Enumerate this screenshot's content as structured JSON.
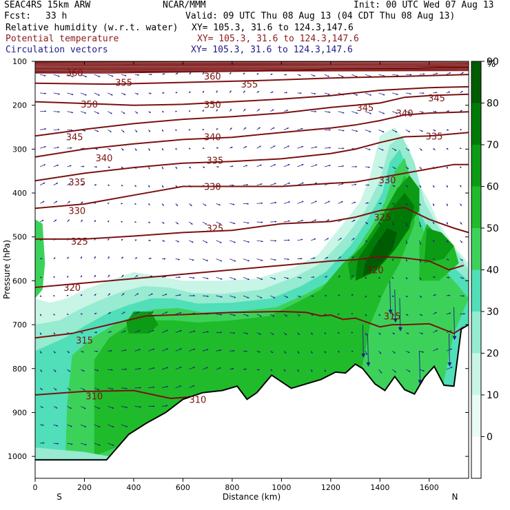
{
  "header": {
    "model": "SEAC4RS 15km ARW",
    "center": "NCAR/MMM",
    "init": "Init: 00 UTC Wed 07 Aug 13",
    "fcst_label": "Fcst:",
    "fcst_value": "33 h",
    "valid": "Valid: 09 UTC Thu 08 Aug 13 (04 CDT Thu 08 Aug 13)",
    "fields": [
      {
        "name": "Relative humidity (w.r.t. water)",
        "coords": "XY= 105.3, 31.6 to 124.3,147.6",
        "color": "#000000"
      },
      {
        "name": "Potential temperature",
        "coords": "XY= 105.3, 31.6 to 124.3,147.6",
        "color": "#8b1a1a"
      },
      {
        "name": "Circulation vectors",
        "coords": "XY= 105.3, 31.6 to 124.3,147.6",
        "color": "#1a1a8b"
      }
    ]
  },
  "chart_data": {
    "type": "heatmap",
    "xlabel": "Distance (km)",
    "ylabel": "Pressure (hPa)",
    "xlim": [
      0,
      1760
    ],
    "ylim": [
      1050,
      100
    ],
    "x_ticks": [
      0,
      200,
      400,
      600,
      800,
      1000,
      1200,
      1400,
      1600
    ],
    "y_ticks": [
      100,
      200,
      300,
      400,
      500,
      600,
      700,
      800,
      900,
      1000
    ],
    "x_end_labels": [
      "S",
      "N"
    ],
    "colorbar": {
      "unit": "%",
      "levels": [
        0,
        10,
        20,
        30,
        40,
        50,
        60,
        70,
        80,
        90
      ],
      "colors": [
        "#ffffff",
        "#e8fbf5",
        "#c8f5e6",
        "#96ebd0",
        "#50dfb8",
        "#3cd25a",
        "#20bb2a",
        "#0c9b14",
        "#007a06",
        "#005c00"
      ]
    },
    "terrain": [
      [
        0,
        1008
      ],
      [
        290,
        1008
      ],
      [
        380,
        950
      ],
      [
        450,
        925
      ],
      [
        530,
        900
      ],
      [
        600,
        870
      ],
      [
        680,
        855
      ],
      [
        760,
        850
      ],
      [
        820,
        840
      ],
      [
        860,
        870
      ],
      [
        900,
        855
      ],
      [
        960,
        815
      ],
      [
        1040,
        845
      ],
      [
        1100,
        835
      ],
      [
        1160,
        825
      ],
      [
        1220,
        808
      ],
      [
        1260,
        810
      ],
      [
        1300,
        790
      ],
      [
        1330,
        800
      ],
      [
        1380,
        835
      ],
      [
        1420,
        850
      ],
      [
        1460,
        818
      ],
      [
        1500,
        848
      ],
      [
        1540,
        858
      ],
      [
        1580,
        820
      ],
      [
        1620,
        795
      ],
      [
        1660,
        838
      ],
      [
        1700,
        840
      ],
      [
        1730,
        710
      ],
      [
        1760,
        700
      ]
    ],
    "theta_isolines": [
      {
        "value": 310,
        "points": [
          [
            0,
            860
          ],
          [
            200,
            852
          ],
          [
            400,
            850
          ],
          [
            550,
            868
          ],
          [
            620,
            865
          ],
          [
            700,
            855
          ],
          [
            760,
            850
          ]
        ]
      },
      {
        "value": 315,
        "points": [
          [
            0,
            730
          ],
          [
            150,
            720
          ],
          [
            300,
            700
          ],
          [
            450,
            680
          ],
          [
            600,
            677
          ],
          [
            800,
            672
          ],
          [
            1000,
            670
          ],
          [
            1100,
            672
          ],
          [
            1160,
            680
          ],
          [
            1200,
            678
          ],
          [
            1250,
            688
          ],
          [
            1300,
            685
          ],
          [
            1350,
            695
          ],
          [
            1400,
            705
          ],
          [
            1450,
            700
          ],
          [
            1500,
            700
          ],
          [
            1600,
            698
          ],
          [
            1700,
            720
          ],
          [
            1740,
            705
          ]
        ]
      },
      {
        "value": 320,
        "points": [
          [
            0,
            615
          ],
          [
            200,
            605
          ],
          [
            400,
            595
          ],
          [
            600,
            585
          ],
          [
            800,
            575
          ],
          [
            1000,
            565
          ],
          [
            1200,
            555
          ],
          [
            1300,
            552
          ],
          [
            1400,
            545
          ],
          [
            1500,
            548
          ],
          [
            1600,
            555
          ],
          [
            1680,
            575
          ],
          [
            1740,
            565
          ]
        ]
      },
      {
        "value": 325,
        "points": [
          [
            0,
            505
          ],
          [
            200,
            505
          ],
          [
            400,
            498
          ],
          [
            600,
            490
          ],
          [
            800,
            485
          ],
          [
            1000,
            470
          ],
          [
            1200,
            465
          ],
          [
            1300,
            455
          ],
          [
            1400,
            440
          ],
          [
            1500,
            433
          ],
          [
            1600,
            460
          ],
          [
            1700,
            480
          ],
          [
            1760,
            490
          ]
        ]
      },
      {
        "value": 330,
        "points": [
          [
            0,
            435
          ],
          [
            200,
            425
          ],
          [
            400,
            405
          ],
          [
            600,
            385
          ],
          [
            800,
            385
          ],
          [
            1000,
            385
          ],
          [
            1200,
            378
          ],
          [
            1300,
            375
          ],
          [
            1400,
            365
          ],
          [
            1500,
            355
          ],
          [
            1600,
            345
          ],
          [
            1700,
            335
          ],
          [
            1760,
            335
          ]
        ]
      },
      {
        "value": 335,
        "points": [
          [
            0,
            372
          ],
          [
            200,
            355
          ],
          [
            400,
            342
          ],
          [
            600,
            332
          ],
          [
            800,
            328
          ],
          [
            1000,
            322
          ],
          [
            1200,
            310
          ],
          [
            1300,
            300
          ],
          [
            1400,
            285
          ],
          [
            1500,
            272
          ],
          [
            1600,
            270
          ],
          [
            1760,
            262
          ]
        ]
      },
      {
        "value": 340,
        "points": [
          [
            0,
            318
          ],
          [
            200,
            300
          ],
          [
            400,
            288
          ],
          [
            600,
            278
          ],
          [
            800,
            273
          ],
          [
            1000,
            262
          ],
          [
            1200,
            252
          ],
          [
            1300,
            245
          ],
          [
            1400,
            235
          ],
          [
            1500,
            222
          ],
          [
            1600,
            218
          ],
          [
            1760,
            215
          ]
        ]
      },
      {
        "value": 345,
        "points": [
          [
            0,
            270
          ],
          [
            200,
            255
          ],
          [
            400,
            242
          ],
          [
            600,
            232
          ],
          [
            800,
            226
          ],
          [
            1000,
            218
          ],
          [
            1200,
            205
          ],
          [
            1300,
            200
          ],
          [
            1400,
            195
          ],
          [
            1500,
            182
          ],
          [
            1600,
            178
          ],
          [
            1760,
            175
          ]
        ]
      },
      {
        "value": 350,
        "points": [
          [
            0,
            192
          ],
          [
            200,
            196
          ],
          [
            400,
            200
          ],
          [
            600,
            198
          ],
          [
            800,
            192
          ],
          [
            1000,
            186
          ],
          [
            1200,
            178
          ],
          [
            1400,
            166
          ],
          [
            1600,
            160
          ],
          [
            1760,
            158
          ]
        ]
      },
      {
        "value": 355,
        "points": [
          [
            0,
            150
          ],
          [
            300,
            152
          ],
          [
            600,
            148
          ],
          [
            900,
            144
          ],
          [
            1200,
            138
          ],
          [
            1500,
            134
          ],
          [
            1760,
            130
          ]
        ]
      },
      {
        "value": 360,
        "points": [
          [
            0,
            126
          ],
          [
            300,
            126
          ],
          [
            600,
            124
          ],
          [
            900,
            122
          ],
          [
            1200,
            118
          ],
          [
            1500,
            116
          ],
          [
            1760,
            114
          ]
        ]
      }
    ],
    "theta_labels": [
      {
        "text": "310",
        "x": 240,
        "p": 862
      },
      {
        "text": "310",
        "x": 660,
        "p": 870
      },
      {
        "text": "315",
        "x": 200,
        "p": 735
      },
      {
        "text": "315",
        "x": 1450,
        "p": 680
      },
      {
        "text": "320",
        "x": 150,
        "p": 615
      },
      {
        "text": "320",
        "x": 1380,
        "p": 575
      },
      {
        "text": "325",
        "x": 180,
        "p": 510
      },
      {
        "text": "325",
        "x": 730,
        "p": 480
      },
      {
        "text": "325",
        "x": 1410,
        "p": 455
      },
      {
        "text": "330",
        "x": 170,
        "p": 440
      },
      {
        "text": "330",
        "x": 720,
        "p": 385
      },
      {
        "text": "330",
        "x": 1430,
        "p": 370
      },
      {
        "text": "335",
        "x": 170,
        "p": 375
      },
      {
        "text": "335",
        "x": 730,
        "p": 325
      },
      {
        "text": "335",
        "x": 1620,
        "p": 270
      },
      {
        "text": "340",
        "x": 280,
        "p": 320
      },
      {
        "text": "340",
        "x": 720,
        "p": 272
      },
      {
        "text": "340",
        "x": 1500,
        "p": 218
      },
      {
        "text": "345",
        "x": 160,
        "p": 272
      },
      {
        "text": "345",
        "x": 1340,
        "p": 205
      },
      {
        "text": "345",
        "x": 1630,
        "p": 183
      },
      {
        "text": "350",
        "x": 220,
        "p": 197
      },
      {
        "text": "350",
        "x": 720,
        "p": 198
      },
      {
        "text": "355",
        "x": 360,
        "p": 148
      },
      {
        "text": "355",
        "x": 870,
        "p": 152
      },
      {
        "text": "360",
        "x": 160,
        "p": 126
      },
      {
        "text": "360",
        "x": 720,
        "p": 134
      }
    ]
  }
}
